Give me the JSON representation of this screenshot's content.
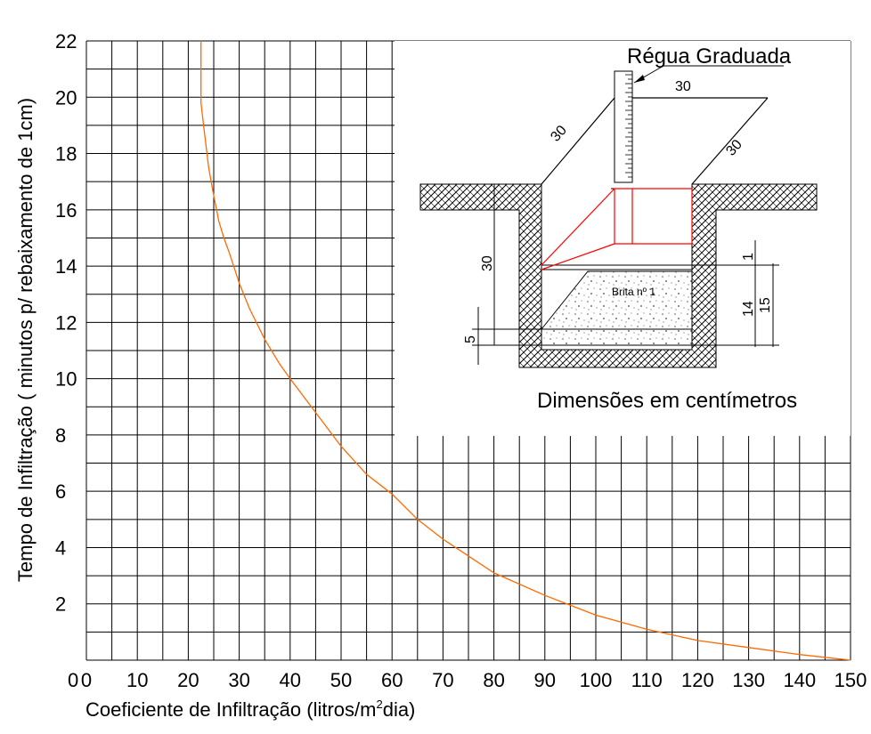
{
  "chart_data": {
    "type": "line",
    "title": "",
    "xlabel": "Coeficiente de Infiltração (litros/m",
    "xlabel_sup": "2",
    "xlabel_end": "dia)",
    "ylabel": "Tempo de Infiltração ( minutos p/ rebaixamento de 1cm)",
    "xlim": [
      0,
      150
    ],
    "ylim": [
      0,
      22
    ],
    "x_ticks": [
      "0",
      "10",
      "20",
      "30",
      "40",
      "50",
      "60",
      "70",
      "80",
      "90",
      "100",
      "110",
      "120",
      "130",
      "140",
      "150"
    ],
    "y_ticks": [
      "2",
      "4",
      "6",
      "8",
      "10",
      "12",
      "14",
      "16",
      "18",
      "20",
      "22"
    ],
    "grid": true,
    "series": [
      {
        "color": "#ff6a00",
        "points": [
          [
            22.5,
            22
          ],
          [
            22.5,
            19.8
          ],
          [
            23,
            19
          ],
          [
            24,
            17.5
          ],
          [
            25,
            16.5
          ],
          [
            26,
            15.6
          ],
          [
            27,
            15.0
          ],
          [
            28,
            14.5
          ],
          [
            30,
            13.4
          ],
          [
            32,
            12.5
          ],
          [
            35,
            11.4
          ],
          [
            38,
            10.5
          ],
          [
            40,
            10.0
          ],
          [
            45,
            8.8
          ],
          [
            50,
            7.6
          ],
          [
            55,
            6.6
          ],
          [
            60,
            5.9
          ],
          [
            65,
            5.0
          ],
          [
            70,
            4.3
          ],
          [
            75,
            3.7
          ],
          [
            80,
            3.1
          ],
          [
            90,
            2.3
          ],
          [
            100,
            1.6
          ],
          [
            110,
            1.1
          ],
          [
            120,
            0.7
          ],
          [
            130,
            0.45
          ],
          [
            140,
            0.2
          ],
          [
            150,
            0
          ]
        ]
      }
    ]
  },
  "diagram": {
    "ruler_label": "Régua Graduada",
    "dim_top": "30",
    "dim_left_diag": "30",
    "dim_right_diag": "30",
    "dim_depth": "30",
    "dim_one": "1",
    "dim_fourteen": "14",
    "dim_fifteen": "15",
    "dim_five": "5",
    "gravel_label": "Brita nº 1",
    "caption": "Dimensões em centímetros"
  },
  "colors": {
    "curve": "#ff6a00",
    "box": "#ff0000",
    "grid": "#000000"
  }
}
